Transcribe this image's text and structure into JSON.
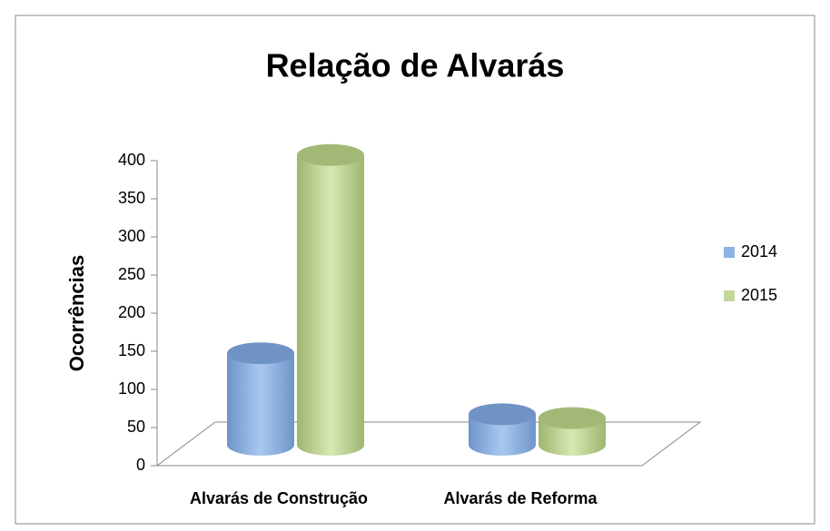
{
  "chart_data": {
    "type": "bar",
    "title": "Relação de Alvarás",
    "y_label": "Ocorrências",
    "categories": [
      "Alvarás de Construção",
      "Alvarás de Reforma"
    ],
    "series": [
      {
        "name": "2014",
        "color": "#8db3e2",
        "values": [
          120,
          40
        ]
      },
      {
        "name": "2015",
        "color": "#c3d69b",
        "values": [
          380,
          35
        ]
      }
    ],
    "ylim": [
      0,
      400
    ],
    "yticks": [
      0,
      50,
      100,
      150,
      200,
      250,
      300,
      350,
      400
    ],
    "legend": "right"
  }
}
